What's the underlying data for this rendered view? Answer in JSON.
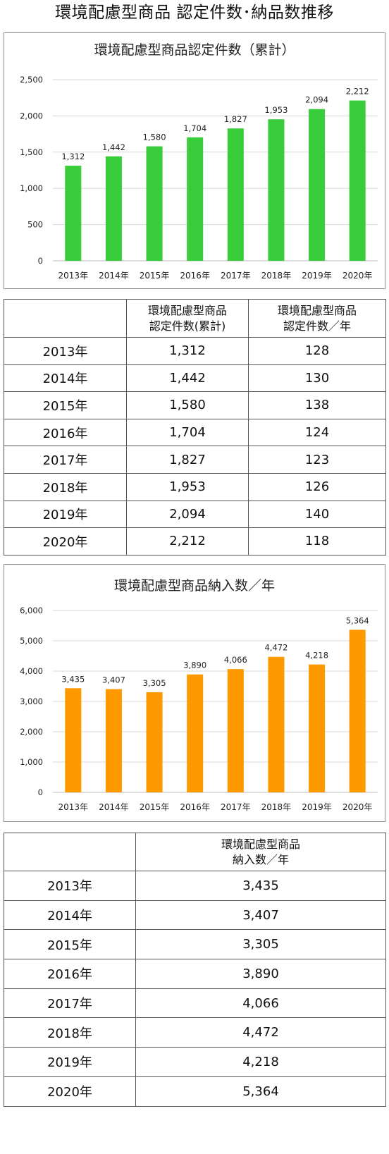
{
  "page": {
    "title": "環境配慮型商品 認定件数･納品数推移"
  },
  "colors": {
    "green": "#39cc3b",
    "orange": "#ff9900",
    "grid": "#d9d9d9",
    "axis": "#bfbfbf"
  },
  "chart_data": [
    {
      "type": "bar",
      "title": "環境配慮型商品認定件数（累計）",
      "categories": [
        "2013年",
        "2014年",
        "2015年",
        "2016年",
        "2017年",
        "2018年",
        "2019年",
        "2020年"
      ],
      "values": [
        1312,
        1442,
        1580,
        1704,
        1827,
        1953,
        2094,
        2212
      ],
      "value_labels": [
        "1,312",
        "1,442",
        "1,580",
        "1,704",
        "1,827",
        "1,953",
        "2,094",
        "2,212"
      ],
      "yticks": [
        "0",
        "500",
        "1,000",
        "1,500",
        "2,000",
        "2,500"
      ],
      "ylim": [
        0,
        2500
      ],
      "grid": true,
      "color": "#39cc3b"
    },
    {
      "type": "bar",
      "title": "環境配慮型商品納入数／年",
      "categories": [
        "2013年",
        "2014年",
        "2015年",
        "2016年",
        "2017年",
        "2018年",
        "2019年",
        "2020年"
      ],
      "values": [
        3435,
        3407,
        3305,
        3890,
        4066,
        4472,
        4218,
        5364
      ],
      "value_labels": [
        "3,435",
        "3,407",
        "3,305",
        "3,890",
        "4,066",
        "4,472",
        "4,218",
        "5,364"
      ],
      "yticks": [
        "0",
        "1,000",
        "2,000",
        "3,000",
        "4,000",
        "5,000",
        "6,000"
      ],
      "ylim": [
        0,
        6000
      ],
      "grid": true,
      "color": "#ff9900"
    }
  ],
  "table1": {
    "header": {
      "col1": "",
      "col2_line1": "環境配慮型商品",
      "col2_line2": "認定件数(累計)",
      "col3_line1": "環境配慮型商品",
      "col3_line2": "認定件数／年"
    },
    "rows": [
      {
        "year": "2013年",
        "cumulative": "1,312",
        "annual": "128"
      },
      {
        "year": "2014年",
        "cumulative": "1,442",
        "annual": "130"
      },
      {
        "year": "2015年",
        "cumulative": "1,580",
        "annual": "138"
      },
      {
        "year": "2016年",
        "cumulative": "1,704",
        "annual": "124"
      },
      {
        "year": "2017年",
        "cumulative": "1,827",
        "annual": "123"
      },
      {
        "year": "2018年",
        "cumulative": "1,953",
        "annual": "126"
      },
      {
        "year": "2019年",
        "cumulative": "2,094",
        "annual": "140"
      },
      {
        "year": "2020年",
        "cumulative": "2,212",
        "annual": "118"
      }
    ]
  },
  "table2": {
    "header": {
      "col1": "",
      "col2_line1": "環境配慮型商品",
      "col2_line2": "納入数／年"
    },
    "rows": [
      {
        "year": "2013年",
        "delivered": "3,435"
      },
      {
        "year": "2014年",
        "delivered": "3,407"
      },
      {
        "year": "2015年",
        "delivered": "3,305"
      },
      {
        "year": "2016年",
        "delivered": "3,890"
      },
      {
        "year": "2017年",
        "delivered": "4,066"
      },
      {
        "year": "2018年",
        "delivered": "4,472"
      },
      {
        "year": "2019年",
        "delivered": "4,218"
      },
      {
        "year": "2020年",
        "delivered": "5,364"
      }
    ]
  }
}
